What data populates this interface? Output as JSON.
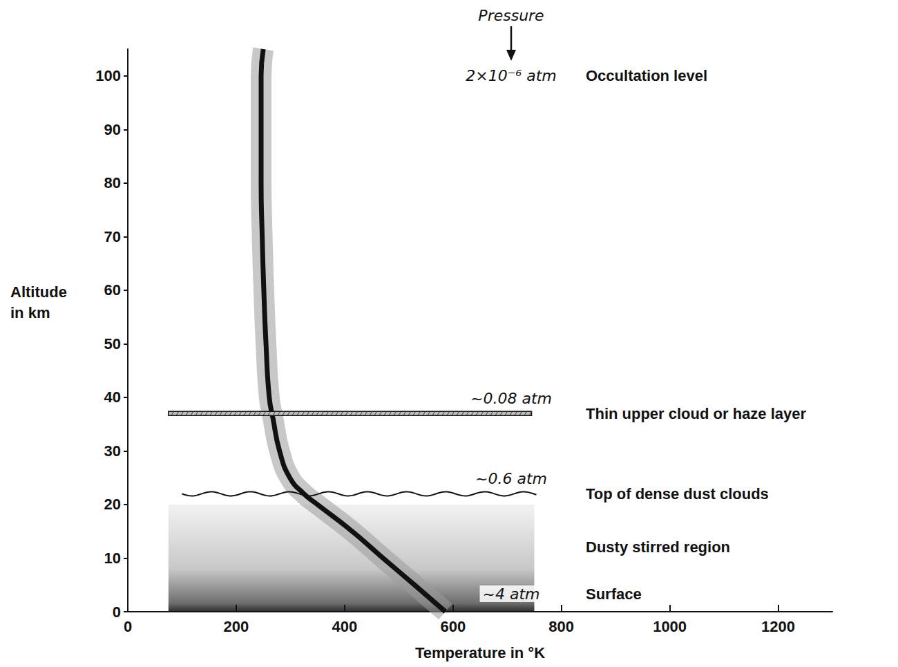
{
  "chart_data": {
    "type": "line",
    "x_label": "Temperature in °K",
    "y_label": "Altitude in km",
    "xlim": [
      0,
      1300
    ],
    "xticks": [
      0,
      200,
      400,
      600,
      800,
      1000,
      1200
    ],
    "ylim": [
      0,
      105
    ],
    "yticks": [
      0,
      10,
      20,
      30,
      40,
      50,
      60,
      70,
      80,
      90,
      100
    ],
    "grid": false,
    "x": [
      586,
      529,
      471,
      414,
      350,
      325,
      299,
      280,
      268,
      261,
      255,
      251,
      248,
      246,
      246,
      246,
      250
    ],
    "values": [
      0,
      5,
      10,
      15,
      20,
      22,
      25,
      30,
      36,
      40,
      50,
      60,
      70,
      80,
      90,
      100,
      105
    ],
    "color": "#111111",
    "pressure_heading": "Pressure",
    "levels": [
      {
        "label": "Occultation level",
        "pressure": "2×10⁻⁶ atm",
        "altitude": 100
      },
      {
        "label": "Thin upper cloud or haze layer",
        "pressure": "~0.08 atm",
        "altitude": 37,
        "extent": [
          75,
          745
        ],
        "line_style": "hatched"
      },
      {
        "label": "Top of dense dust clouds",
        "pressure": "~0.6 atm",
        "altitude": 22,
        "extent": [
          100,
          755
        ],
        "line_style": "wavy"
      },
      {
        "label": "Dusty stirred region",
        "altitude": 12,
        "range": [
          0,
          20
        ],
        "extent": [
          75,
          750
        ]
      },
      {
        "label": "Surface",
        "pressure": "~4 atm",
        "altitude": 0
      }
    ]
  }
}
